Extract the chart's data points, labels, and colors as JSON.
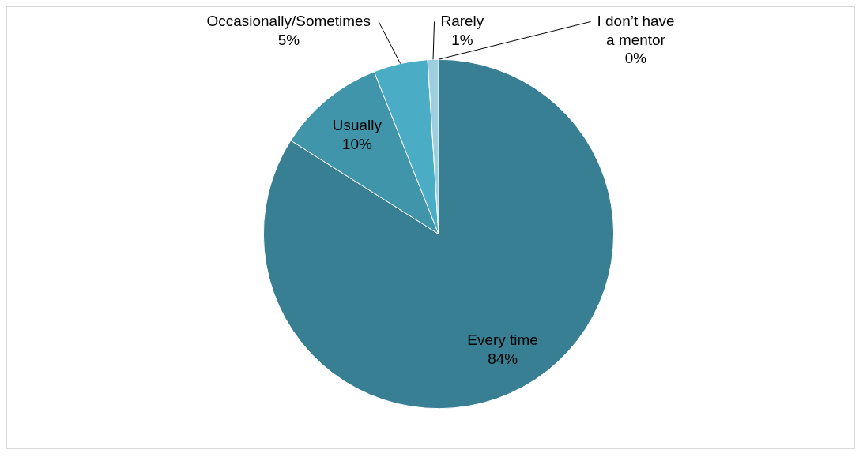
{
  "chart_data": {
    "type": "pie",
    "categories": [
      "Every time",
      "Usually",
      "Occasionally/Sometimes",
      "Rarely",
      "I don’t have a mentor"
    ],
    "values": [
      84,
      10,
      5,
      1,
      0
    ],
    "value_labels": [
      "84%",
      "10%",
      "5%",
      "1%",
      "0%"
    ],
    "colors": [
      "#387f94",
      "#4195ab",
      "#4aacc5",
      "#9fcfdd",
      "#c5e2ea"
    ],
    "legend": false
  }
}
